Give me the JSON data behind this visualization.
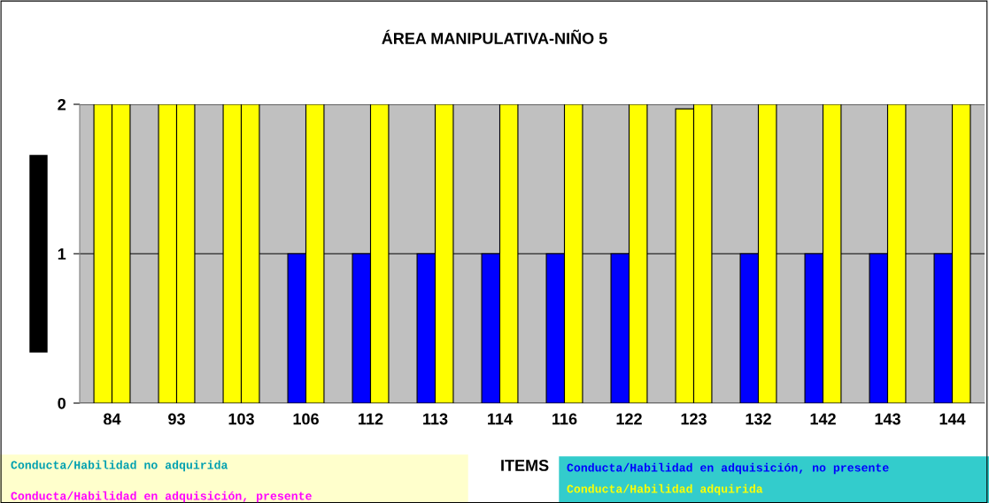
{
  "chart_data": {
    "type": "bar",
    "title": "ÁREA MANIPULATIVA-NIÑO 5",
    "xlabel": "ITEMS",
    "categories": [
      "84",
      "93",
      "103",
      "106",
      "112",
      "113",
      "114",
      "116",
      "122",
      "123",
      "132",
      "142",
      "143",
      "144"
    ],
    "series": [
      {
        "values": [
          2,
          2,
          2,
          1,
          1,
          1,
          1,
          1,
          1,
          1.97,
          1,
          1,
          1,
          1
        ],
        "colors": [
          "#ffff00",
          "#ffff00",
          "#ffff00",
          "#0000ff",
          "#0000ff",
          "#0000ff",
          "#0000ff",
          "#0000ff",
          "#0000ff",
          "#ffff00",
          "#0000ff",
          "#0000ff",
          "#0000ff",
          "#0000ff"
        ]
      },
      {
        "values": [
          2,
          2,
          2,
          2,
          2,
          2,
          2,
          2,
          2,
          2,
          2,
          2,
          2,
          2
        ],
        "color": "#ffff00"
      }
    ],
    "ylim": [
      0,
      2
    ],
    "yticks": [
      0,
      1,
      2
    ],
    "grid": "y",
    "legend": false,
    "annotations": [
      "Conducta/Habilidad no adquirida",
      "Conducta/Habilidad en adquisición, presente",
      "Conducta/Habilidad en adquisición, no presente",
      "Conducta/Habilidad adquirida"
    ]
  }
}
